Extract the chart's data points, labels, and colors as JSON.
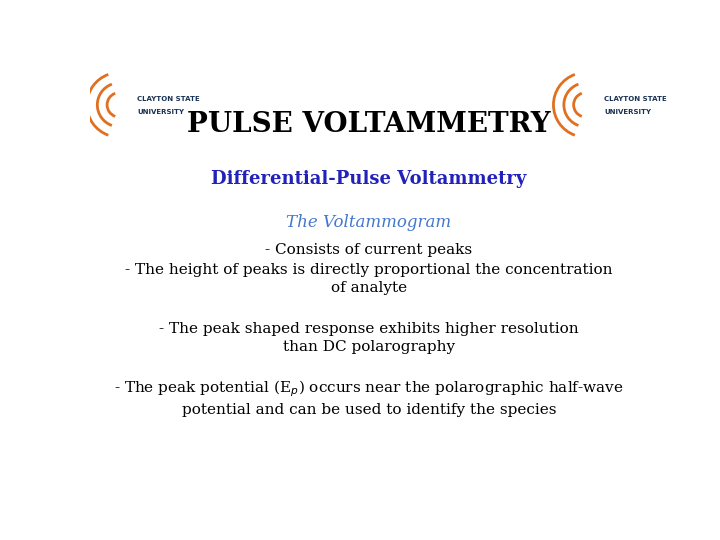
{
  "title": "PULSE VOLTAMMETRY",
  "subtitle": "Differential-Pulse Voltammetry",
  "section_header": "The Voltammogram",
  "bullet1": "- Consists of current peaks",
  "bullet2": "- The height of peaks is directly proportional the concentration\nof analyte",
  "bullet3": "- The peak shaped response exhibits higher resolution\nthan DC polarography",
  "bullet4": "- The peak potential (E$_p$) occurs near the polarographic half-wave\npotential and can be used to identify the species",
  "title_color": "#000000",
  "subtitle_color": "#2222BB",
  "header_color": "#4477CC",
  "body_color": "#000000",
  "bg_color": "#FFFFFF",
  "orange": "#E07020",
  "navy": "#1A3355",
  "title_fontsize": 20,
  "subtitle_fontsize": 13,
  "header_fontsize": 12,
  "body_fontsize": 11,
  "logo_text_fontsize": 5
}
